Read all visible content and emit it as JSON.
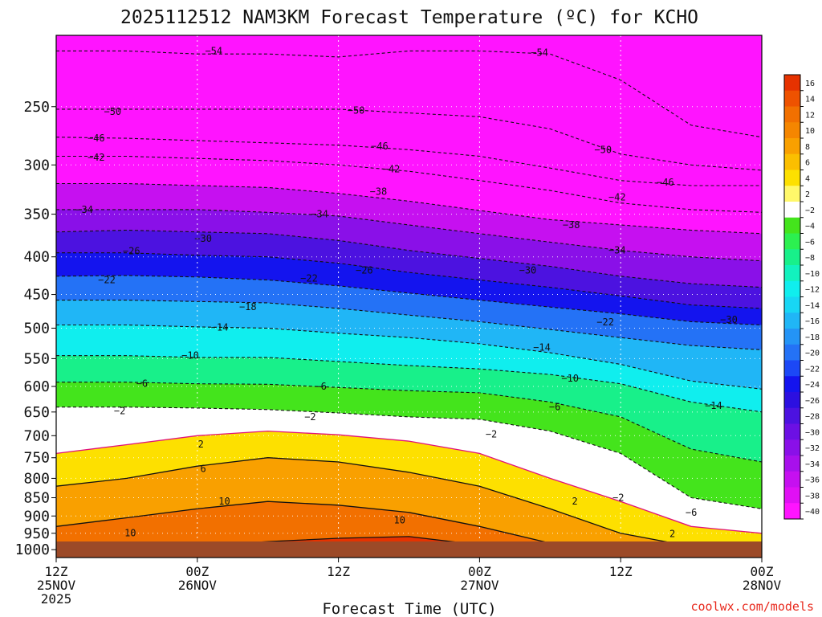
{
  "chart_data": {
    "type": "time-height contour",
    "title": "2025112512 NAM3KM Forecast Temperature (ºC) for KCHO",
    "xlabel": "Forecast Time (UTC)",
    "ylabel": "",
    "credit": "coolwx.com/models",
    "x_ticks": [
      {
        "hour": 0,
        "line1": "12Z",
        "line2": "25NOV",
        "line3": "2025"
      },
      {
        "hour": 12,
        "line1": "00Z",
        "line2": "26NOV",
        "line3": ""
      },
      {
        "hour": 24,
        "line1": "12Z",
        "line2": "",
        "line3": ""
      },
      {
        "hour": 36,
        "line1": "00Z",
        "line2": "27NOV",
        "line3": ""
      },
      {
        "hour": 48,
        "line1": "12Z",
        "line2": "",
        "line3": ""
      },
      {
        "hour": 60,
        "line1": "00Z",
        "line2": "28NOV",
        "line3": ""
      }
    ],
    "xlim_hours": [
      0,
      60
    ],
    "y_ticks_hpa": [
      250,
      300,
      350,
      400,
      450,
      500,
      550,
      600,
      650,
      700,
      750,
      800,
      850,
      900,
      950,
      1000
    ],
    "ylim_hpa": [
      200,
      1025
    ],
    "colorbar_levels": [
      16,
      14,
      12,
      10,
      8,
      6,
      4,
      2,
      -2,
      -4,
      -6,
      -8,
      -10,
      -12,
      -14,
      -16,
      -18,
      -20,
      -22,
      -24,
      -26,
      -28,
      -30,
      -32,
      -34,
      -36,
      -38,
      -40
    ],
    "colorbar_colors": [
      "#e63200",
      "#ee5200",
      "#f27000",
      "#f58600",
      "#f9a000",
      "#fbbf00",
      "#fde000",
      "#fff86a",
      "#ffffff",
      "#44e41c",
      "#2cf050",
      "#18f08a",
      "#12f2be",
      "#10eeee",
      "#18d6f4",
      "#20b6f6",
      "#2494f6",
      "#2472f6",
      "#1c48f6",
      "#1414ee",
      "#2c10e0",
      "#4c12e0",
      "#6c10e4",
      "#8a10e8",
      "#a810ec",
      "#c610f0",
      "#e010f4",
      "#ff14ff"
    ],
    "isotherm_profiles_by_hour": [
      0,
      6,
      12,
      18,
      24,
      30,
      36,
      42,
      48,
      54,
      60
    ],
    "isotherms": [
      {
        "temp": -54,
        "hpa": [
          210,
          210,
          212,
          212,
          214,
          210,
          210,
          212,
          230,
          265,
          275
        ]
      },
      {
        "temp": -50,
        "hpa": [
          252,
          252,
          252,
          252,
          252,
          255,
          258,
          268,
          290,
          300,
          305
        ]
      },
      {
        "temp": -46,
        "hpa": [
          275,
          276,
          278,
          280,
          282,
          286,
          292,
          303,
          315,
          320,
          320
        ]
      },
      {
        "temp": -42,
        "hpa": [
          292,
          292,
          294,
          296,
          300,
          306,
          315,
          325,
          338,
          345,
          348
        ]
      },
      {
        "temp": -38,
        "hpa": [
          318,
          318,
          320,
          322,
          328,
          336,
          346,
          356,
          362,
          368,
          372
        ]
      },
      {
        "temp": -34,
        "hpa": [
          345,
          345,
          345,
          348,
          352,
          362,
          372,
          382,
          392,
          400,
          405
        ]
      },
      {
        "temp": -30,
        "hpa": [
          370,
          368,
          370,
          372,
          380,
          392,
          402,
          412,
          425,
          435,
          440
        ]
      },
      {
        "temp": -26,
        "hpa": [
          395,
          395,
          398,
          400,
          408,
          420,
          430,
          440,
          452,
          465,
          470
        ]
      },
      {
        "temp": -22,
        "hpa": [
          425,
          424,
          426,
          430,
          438,
          448,
          458,
          468,
          478,
          490,
          495
        ]
      },
      {
        "temp": -18,
        "hpa": [
          458,
          458,
          460,
          462,
          470,
          480,
          490,
          502,
          515,
          528,
          535
        ]
      },
      {
        "temp": -14,
        "hpa": [
          495,
          495,
          498,
          500,
          508,
          515,
          525,
          540,
          560,
          590,
          605
        ]
      },
      {
        "temp": -10,
        "hpa": [
          545,
          545,
          548,
          548,
          555,
          562,
          568,
          578,
          595,
          630,
          650
        ]
      },
      {
        "temp": -6,
        "hpa": [
          592,
          592,
          595,
          596,
          602,
          608,
          612,
          630,
          660,
          730,
          760
        ]
      },
      {
        "temp": -2,
        "hpa": [
          640,
          640,
          642,
          645,
          652,
          660,
          665,
          690,
          740,
          850,
          880
        ]
      },
      {
        "temp": 2,
        "hpa": [
          740,
          720,
          700,
          690,
          698,
          712,
          740,
          800,
          860,
          930,
          950
        ]
      },
      {
        "temp": 6,
        "hpa": [
          820,
          800,
          770,
          750,
          760,
          785,
          820,
          880,
          950,
          990,
          1000
        ]
      },
      {
        "temp": 10,
        "hpa": [
          930,
          905,
          880,
          860,
          870,
          890,
          930,
          980,
          1010,
          1020,
          1020
        ]
      },
      {
        "temp": 14,
        "hpa": [
          1020,
          1010,
          990,
          975,
          965,
          960,
          985,
          1015,
          1025,
          1025,
          1025
        ]
      }
    ],
    "contour_labels": [
      {
        "text": "−54",
        "hour": 13.4,
        "hpa": 210
      },
      {
        "text": "−54",
        "hour": 41.1,
        "hpa": 211
      },
      {
        "text": "−50",
        "hour": 4.8,
        "hpa": 254
      },
      {
        "text": "−50",
        "hour": 25.5,
        "hpa": 253
      },
      {
        "text": "−50",
        "hour": 46.5,
        "hpa": 286
      },
      {
        "text": "−46",
        "hour": 3.4,
        "hpa": 276
      },
      {
        "text": "−46",
        "hour": 27.5,
        "hpa": 283
      },
      {
        "text": "−46",
        "hour": 51.8,
        "hpa": 317
      },
      {
        "text": "−42",
        "hour": 3.4,
        "hpa": 293
      },
      {
        "text": "−42",
        "hour": 28.5,
        "hpa": 304
      },
      {
        "text": "−42",
        "hour": 47.7,
        "hpa": 332
      },
      {
        "text": "−38",
        "hour": 27.4,
        "hpa": 326
      },
      {
        "text": "−38",
        "hour": 43.8,
        "hpa": 362
      },
      {
        "text": "−34",
        "hour": 2.4,
        "hpa": 345
      },
      {
        "text": "−34",
        "hour": 22.4,
        "hpa": 350
      },
      {
        "text": "−34",
        "hour": 47.7,
        "hpa": 392
      },
      {
        "text": "−30",
        "hour": 12.5,
        "hpa": 378
      },
      {
        "text": "−30",
        "hour": 40.1,
        "hpa": 417
      },
      {
        "text": "−30",
        "hour": 57.2,
        "hpa": 487
      },
      {
        "text": "−26",
        "hour": 6.4,
        "hpa": 393
      },
      {
        "text": "−26",
        "hour": 26.2,
        "hpa": 417
      },
      {
        "text": "−22",
        "hour": 4.3,
        "hpa": 430
      },
      {
        "text": "−22",
        "hour": 21.5,
        "hpa": 428
      },
      {
        "text": "−22",
        "hour": 46.7,
        "hpa": 491
      },
      {
        "text": "−18",
        "hour": 16.3,
        "hpa": 468
      },
      {
        "text": "−14",
        "hour": 13.9,
        "hpa": 499
      },
      {
        "text": "−14",
        "hour": 41.3,
        "hpa": 531
      },
      {
        "text": "−14",
        "hour": 55.9,
        "hpa": 637
      },
      {
        "text": "−10",
        "hour": 11.4,
        "hpa": 545
      },
      {
        "text": "−10",
        "hour": 43.7,
        "hpa": 585
      },
      {
        "text": "−6",
        "hour": 7.3,
        "hpa": 595
      },
      {
        "text": "−6",
        "hour": 22.5,
        "hpa": 600
      },
      {
        "text": "−6",
        "hour": 42.4,
        "hpa": 640
      },
      {
        "text": "−6",
        "hour": 54.0,
        "hpa": 890
      },
      {
        "text": "−2",
        "hour": 5.4,
        "hpa": 648
      },
      {
        "text": "−2",
        "hour": 21.6,
        "hpa": 660
      },
      {
        "text": "−2",
        "hour": 37.0,
        "hpa": 697
      },
      {
        "text": "−2",
        "hour": 47.8,
        "hpa": 850
      },
      {
        "text": "2",
        "hour": 44.1,
        "hpa": 860
      },
      {
        "text": "2",
        "hour": 52.4,
        "hpa": 952
      },
      {
        "text": "2",
        "hour": 12.3,
        "hpa": 719
      },
      {
        "text": "6",
        "hour": 12.5,
        "hpa": 776
      },
      {
        "text": "10",
        "hour": 6.3,
        "hpa": 949
      },
      {
        "text": "10",
        "hour": 14.3,
        "hpa": 860
      },
      {
        "text": "10",
        "hour": 29.2,
        "hpa": 912
      }
    ]
  }
}
